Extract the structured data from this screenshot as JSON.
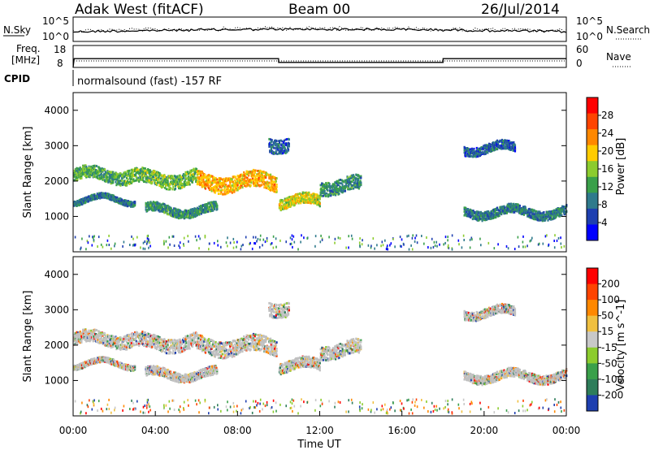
{
  "header": {
    "station": "Adak West (fitACF)",
    "beam": "Beam 00",
    "date": "26/Jul/2014"
  },
  "panels": {
    "noise": {
      "left_label": "N.Sky",
      "right_label": "N.Search",
      "left_ticks": [
        "10^5",
        "10^0"
      ],
      "right_ticks": [
        "10^5",
        "10^0"
      ]
    },
    "freq": {
      "left_label_line1": "Freq.",
      "left_label_line2": "[MHz]",
      "right_label": "Nave",
      "left_ticks": [
        "18",
        "8"
      ],
      "right_ticks": [
        "60",
        "0"
      ]
    },
    "cpid": {
      "label": "CPID",
      "value": "normalsound (fast) -157 RF"
    }
  },
  "colors": {
    "power_scale": [
      "#0000ff",
      "#1e3fb0",
      "#2f7a8c",
      "#3aa04a",
      "#8ccc2e",
      "#ffcc00",
      "#ff8800",
      "#ff4400",
      "#ff0000"
    ],
    "velocity_scale": [
      "#1e3fb0",
      "#2e7d5a",
      "#3aa04a",
      "#8ccc2e",
      "#c8c8c8",
      "#f0c040",
      "#ff8800",
      "#ff4400",
      "#ff0000"
    ],
    "ground_scatter": "#c0c0c0"
  },
  "chart_data": [
    {
      "type": "line",
      "title": "N.Sky / N.Search",
      "xlim": [
        "00:00",
        "24:00"
      ],
      "series": [
        {
          "name": "N.Sky",
          "x": [
            0,
            2,
            4,
            6,
            8,
            10,
            12,
            14,
            16,
            18,
            20,
            22,
            24
          ],
          "values": [
            50,
            80,
            120,
            150,
            200,
            300,
            400,
            350,
            250,
            150,
            100,
            80,
            60
          ]
        },
        {
          "name": "N.Search",
          "x": [
            0,
            4,
            8,
            12,
            16,
            20,
            24
          ],
          "values": [
            40,
            100,
            180,
            380,
            240,
            90,
            50
          ]
        }
      ]
    },
    {
      "type": "line",
      "title": "Freq. / Nave",
      "xlim": [
        "00:00",
        "24:00"
      ],
      "series": [
        {
          "name": "Freq.",
          "unit": "MHz",
          "x": [
            0.0,
            0.05,
            10.0,
            10.0,
            18.0,
            18.0,
            24.0
          ],
          "values": [
            8,
            12,
            12,
            10.3,
            10.3,
            12,
            12
          ]
        },
        {
          "name": "Nave",
          "x": [
            0,
            24
          ],
          "values": [
            20,
            20
          ]
        }
      ]
    },
    {
      "type": "heatmap",
      "ylabel": "Slant Range [km]",
      "colorbar_label": "Power [dB]",
      "colorbar_ticks": [
        "28",
        "24",
        "20",
        "16",
        "12",
        "8",
        "4"
      ],
      "xlim": [
        0,
        24
      ],
      "ylim": [
        0,
        4500
      ],
      "yticks": [
        "1000",
        "2000",
        "3000",
        "4000"
      ],
      "bands": [
        {
          "start": 0.0,
          "end": 2.5,
          "center_range": 2200,
          "width": 350,
          "power": 12
        },
        {
          "start": 2.5,
          "end": 6.0,
          "center_range": 2100,
          "width": 400,
          "power": 14
        },
        {
          "start": 6.0,
          "end": 9.9,
          "center_range": 2000,
          "width": 450,
          "power": 22
        },
        {
          "start": 10.0,
          "end": 12.0,
          "center_range": 1450,
          "width": 300,
          "power": 18
        },
        {
          "start": 12.0,
          "end": 14.0,
          "center_range": 1900,
          "width": 400,
          "power": 10
        },
        {
          "start": 0.0,
          "end": 3.0,
          "center_range": 1500,
          "width": 150,
          "power": 8
        },
        {
          "start": 3.5,
          "end": 7.0,
          "center_range": 1200,
          "width": 250,
          "power": 10
        },
        {
          "start": 19.0,
          "end": 24.0,
          "center_range": 1150,
          "width": 250,
          "power": 8
        },
        {
          "start": 19.0,
          "end": 21.5,
          "center_range": 2950,
          "width": 250,
          "power": 6
        },
        {
          "start": 9.5,
          "end": 10.5,
          "center_range": 3100,
          "width": 400,
          "power": 6
        }
      ]
    },
    {
      "type": "heatmap",
      "ylabel": "Slant Range [km]",
      "xlabel": "Time UT",
      "colorbar_label": "Velocity [m s^-1]",
      "colorbar_ticks": [
        "200",
        "100",
        "50",
        "15",
        "-15",
        "-50",
        "-100",
        "-200"
      ],
      "xlim": [
        0,
        24
      ],
      "ylim": [
        0,
        4500
      ],
      "yticks": [
        "1000",
        "2000",
        "3000",
        "4000"
      ],
      "xticks": [
        "00:00",
        "04:00",
        "08:00",
        "12:00",
        "16:00",
        "20:00",
        "00:00"
      ]
    }
  ]
}
